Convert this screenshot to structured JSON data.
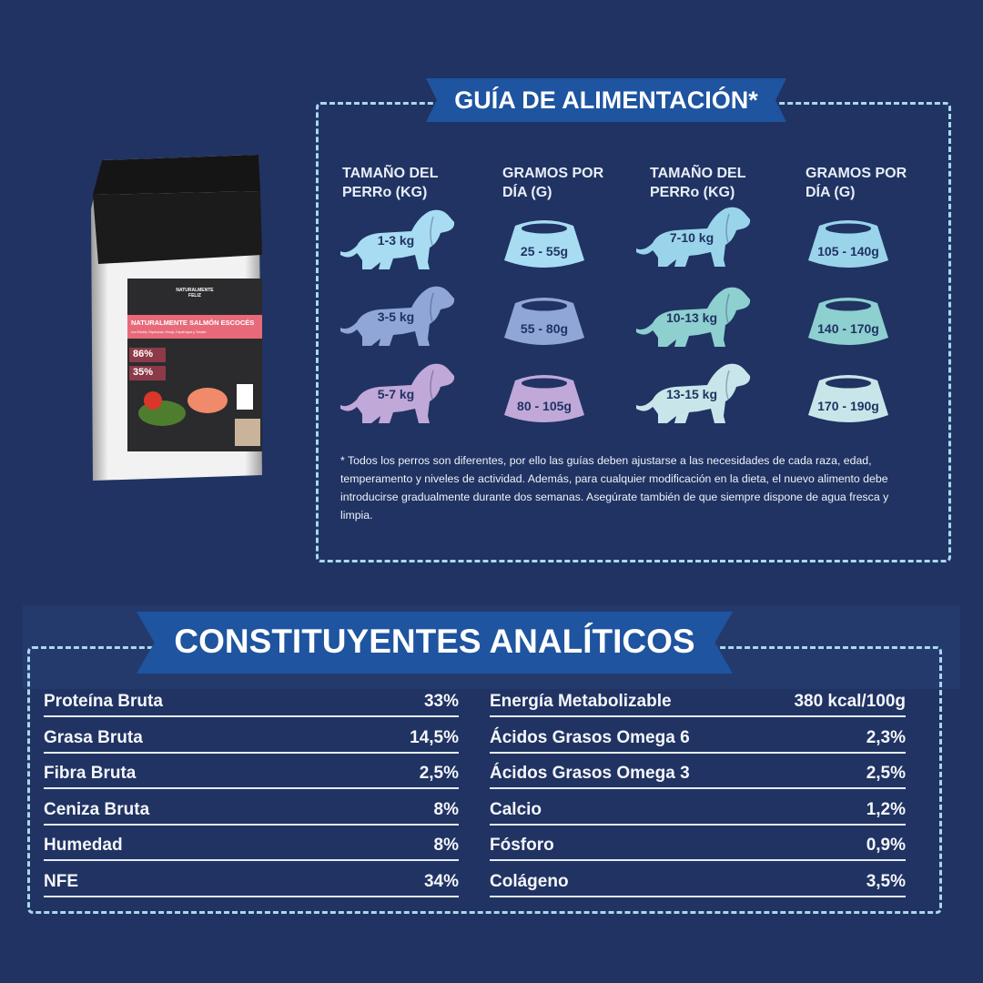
{
  "feeding_guide": {
    "title": "GUÍA DE ALIMENTACIÓN*",
    "column_headers": [
      "TAMAÑO DEL PERRo (KG)",
      "GRAMOS POR DÍA (G)",
      "TAMAÑO DEL PERRo (KG)",
      "GRAMOS POR DÍA (G)"
    ],
    "rows": [
      {
        "dog": "1-3 kg",
        "grams": "25 - 55g",
        "color": "#a8dcf2"
      },
      {
        "dog": "3-5 kg",
        "grams": "55 - 80g",
        "color": "#8fa6d6"
      },
      {
        "dog": "5-7 kg",
        "grams": "80 - 105g",
        "color": "#c0a8d8"
      },
      {
        "dog": "7-10 kg",
        "grams": "105 - 140g",
        "color": "#9ad4ea"
      },
      {
        "dog": "10-13 kg",
        "grams": "140 - 170g",
        "color": "#8ecfd0"
      },
      {
        "dog": "13-15 kg",
        "grams": "170 - 190g",
        "color": "#c8e6ea"
      }
    ],
    "note": "* Todos los perros son diferentes, por ello las guías deben ajustarse a las necesidades de cada raza, edad, temperamento y niveles de actividad. Además, para cualquier modificación en la dieta, el nuevo alimento debe introducirse gradualmente durante dos semanas. Asegúrate también de que siempre dispone de agua fresca y limpia."
  },
  "product": {
    "brand": "NATURALMENTE FELIZ",
    "name": "NATURALMENTE SALMÓN ESCOCÉS",
    "subtitle": "con Eneldo, Espinacas, Hinojo, Espárragos y Tomate",
    "stat1": "86%",
    "stat2": "35%"
  },
  "analytical": {
    "title": "CONSTITUYENTES ANALÍTICOS",
    "left": [
      {
        "label": "Proteína Bruta",
        "value": "33%"
      },
      {
        "label": "Grasa Bruta",
        "value": "14,5%"
      },
      {
        "label": "Fibra Bruta",
        "value": "2,5%"
      },
      {
        "label": "Ceniza Bruta",
        "value": "8%"
      },
      {
        "label": "Humedad",
        "value": "8%"
      },
      {
        "label": "NFE",
        "value": "34%"
      }
    ],
    "right": [
      {
        "label": "Energía Metabolizable",
        "value": "380 kcal/100g"
      },
      {
        "label": "Ácidos Grasos Omega 6",
        "value": "2,3%"
      },
      {
        "label": "Ácidos Grasos Omega 3",
        "value": "2,5%"
      },
      {
        "label": "Calcio",
        "value": "1,2%"
      },
      {
        "label": "Fósforo",
        "value": "0,9%"
      },
      {
        "label": "Colágeno",
        "value": "3,5%"
      }
    ]
  },
  "colors": {
    "background": "#203362",
    "banner": "#1e54a0",
    "dashed_border": "#a9d8ef"
  }
}
